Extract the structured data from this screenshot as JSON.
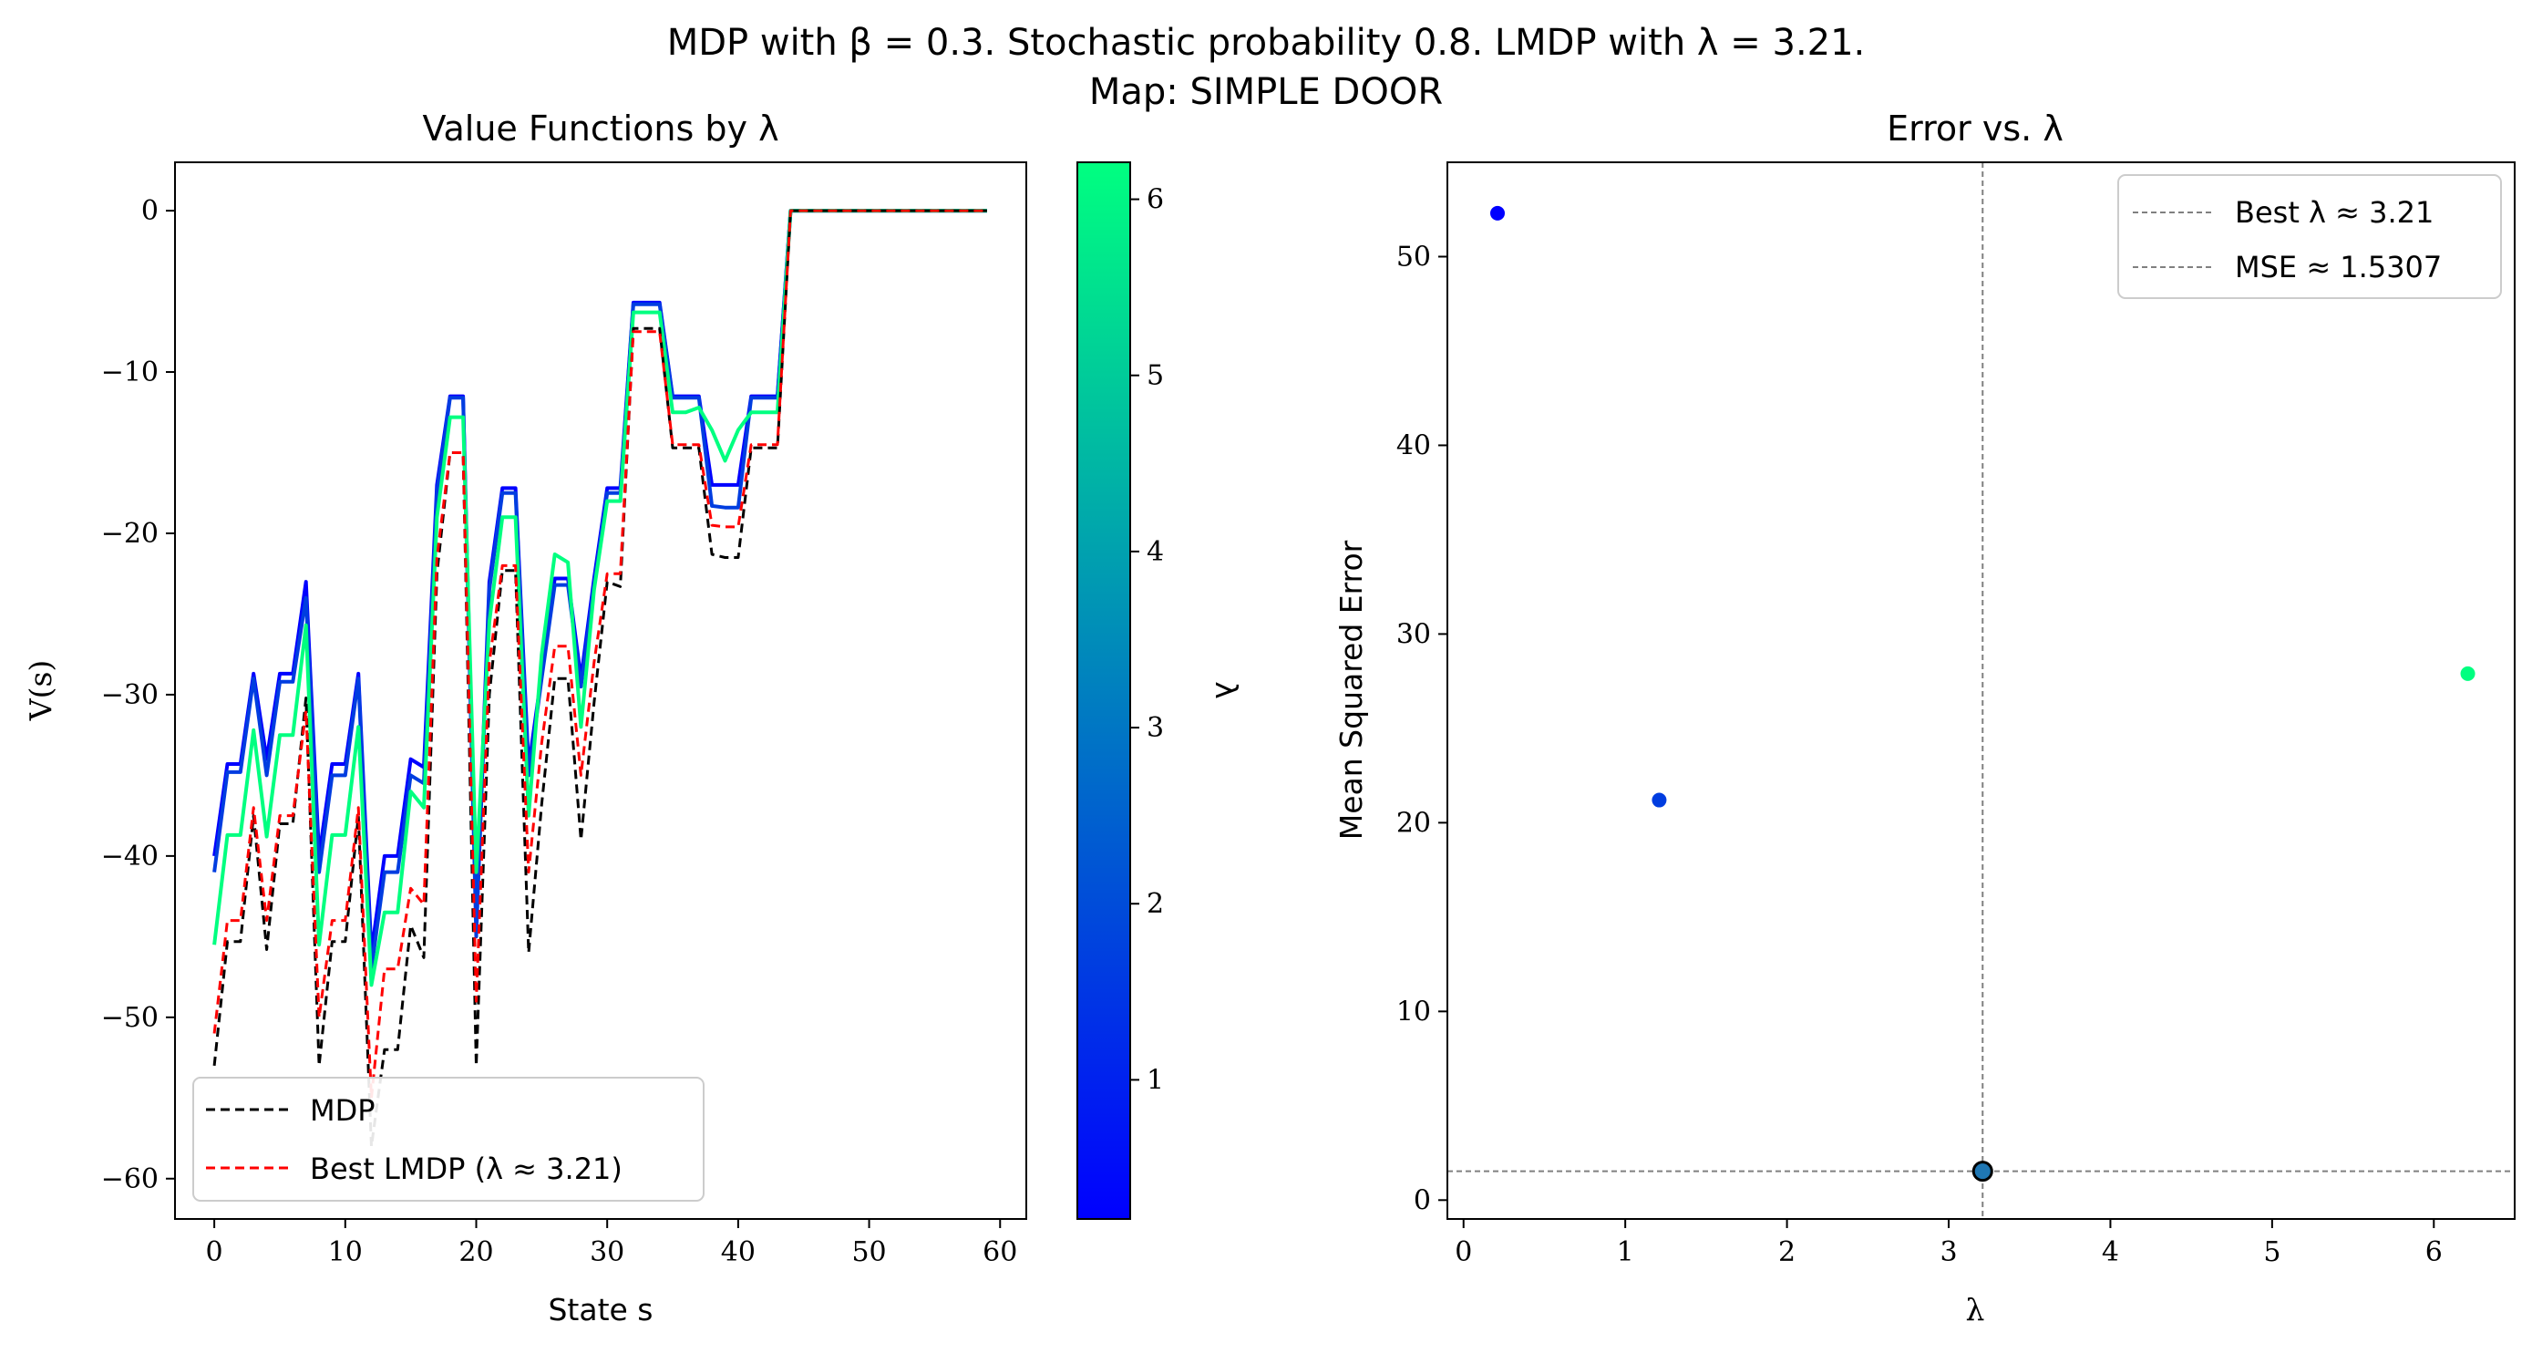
{
  "figure": {
    "suptitle_line1": "MDP with β = 0.3. Stochastic probability 0.8. LMDP with λ = 3.21.",
    "suptitle_line2": "Map: SIMPLE DOOR"
  },
  "colors": {
    "mdp": "#000000",
    "best_lmdp": "#ff0000",
    "colormap_low": "#0000ff",
    "colormap_high": "#00ff80",
    "best_marker": "#1f77b4",
    "refline": "#808080"
  },
  "chart_data": [
    {
      "type": "line",
      "title": "Value Functions by λ",
      "xlabel": "State s",
      "ylabel": "V(s)",
      "xlim": [
        -3,
        62
      ],
      "ylim": [
        -62.5,
        3
      ],
      "xticks": [
        0,
        10,
        20,
        30,
        40,
        50,
        60
      ],
      "yticks": [
        0,
        -10,
        -20,
        -30,
        -40,
        -50,
        -60
      ],
      "grid": false,
      "legend_position": "lower-left",
      "legend": [
        "MDP",
        "Best LMDP (λ ≈ 3.21)"
      ],
      "colorbar": {
        "label": "λ",
        "range": [
          0.21,
          6.21
        ],
        "ticks": [
          1,
          2,
          3,
          4,
          5,
          6
        ]
      },
      "series": [
        {
          "name": "MDP",
          "style": "dashed",
          "color": "#000000",
          "values": [
            -53,
            -45.3,
            -45.3,
            -37.5,
            -45.8,
            -38,
            -38,
            -30.2,
            -53,
            -45.3,
            -45.3,
            -37.5,
            -58,
            -52,
            -52,
            -44.3,
            -46.3,
            -22.5,
            -15,
            -15,
            -53,
            -30,
            -22.3,
            -22.3,
            -46,
            -36.8,
            -29,
            -29,
            -39,
            -30.5,
            -23,
            -23.3,
            -7.3,
            -7.3,
            -7.3,
            -14.7,
            -14.7,
            -14.7,
            -21.3,
            -21.5,
            -21.5,
            -14.7,
            -14.7,
            -14.7,
            0,
            0,
            0,
            0,
            0,
            0,
            0,
            0,
            0,
            0,
            0,
            0,
            0,
            0,
            0,
            0
          ]
        },
        {
          "name": "Best LMDP (λ ≈ 3.21)",
          "style": "dashed",
          "color": "#ff0000",
          "values": [
            -51,
            -44,
            -44,
            -37,
            -44,
            -37.5,
            -37.5,
            -31,
            -50,
            -44,
            -44,
            -37,
            -55,
            -47,
            -47,
            -42,
            -43,
            -21.5,
            -15,
            -15,
            -49,
            -28,
            -22,
            -22,
            -41,
            -33,
            -27,
            -27,
            -35,
            -28,
            -22.5,
            -22.5,
            -7.5,
            -7.5,
            -7.5,
            -14.5,
            -14.5,
            -14.5,
            -19.5,
            -19.6,
            -19.6,
            -14.5,
            -14.5,
            -14.5,
            0,
            0,
            0,
            0,
            0,
            0,
            0,
            0,
            0,
            0,
            0,
            0,
            0,
            0,
            0,
            0
          ]
        },
        {
          "name": "λ = 0.21",
          "lambda": 0.21,
          "color": "#0000ff",
          "values": [
            -40,
            -34.3,
            -34.3,
            -28.7,
            -34,
            -28.7,
            -28.7,
            -23,
            -40,
            -34.3,
            -34.3,
            -28.7,
            -46,
            -40,
            -40,
            -34,
            -34.5,
            -17,
            -11.5,
            -11.5,
            -44,
            -23,
            -17.2,
            -17.2,
            -34.5,
            -28.7,
            -22.8,
            -22.8,
            -29,
            -22.8,
            -17.2,
            -17.2,
            -5.7,
            -5.7,
            -5.7,
            -11.5,
            -11.5,
            -11.5,
            -17,
            -17,
            -17,
            -11.5,
            -11.5,
            -11.5,
            0,
            0,
            0,
            0,
            0,
            0,
            0,
            0,
            0,
            0,
            0,
            0,
            0,
            0,
            0,
            0
          ]
        },
        {
          "name": "λ = 1.21",
          "lambda": 1.21,
          "color": "#003de0",
          "values": [
            -41,
            -34.8,
            -34.8,
            -29,
            -35,
            -29.2,
            -29.2,
            -24,
            -41,
            -35,
            -35,
            -29,
            -47,
            -41,
            -41,
            -35,
            -35.5,
            -17.5,
            -11.6,
            -11.6,
            -45,
            -23.5,
            -17.5,
            -17.5,
            -35,
            -29,
            -23.2,
            -23.2,
            -29.5,
            -23.2,
            -17.5,
            -17.5,
            -5.8,
            -5.8,
            -5.8,
            -11.6,
            -11.6,
            -11.6,
            -18.3,
            -18.4,
            -18.4,
            -11.6,
            -11.6,
            -11.6,
            0,
            0,
            0,
            0,
            0,
            0,
            0,
            0,
            0,
            0,
            0,
            0,
            0,
            0,
            0,
            0
          ]
        },
        {
          "name": "λ = 6.21",
          "lambda": 6.21,
          "color": "#00ff80",
          "values": [
            -45.5,
            -38.7,
            -38.7,
            -32.2,
            -38.8,
            -32.5,
            -32.5,
            -25.7,
            -45.5,
            -38.7,
            -38.7,
            -32,
            -48,
            -43.5,
            -43.5,
            -36,
            -37,
            -19,
            -12.8,
            -12.8,
            -41,
            -25.5,
            -19,
            -19,
            -37.5,
            -27.5,
            -21.3,
            -21.8,
            -32,
            -23.5,
            -18,
            -18,
            -6.3,
            -6.3,
            -6.3,
            -12.5,
            -12.5,
            -12.2,
            -13.6,
            -15.5,
            -13.6,
            -12.5,
            -12.5,
            -12.5,
            0,
            0,
            0,
            0,
            0,
            0,
            0,
            0,
            0,
            0,
            0,
            0,
            0,
            0,
            0,
            0
          ]
        }
      ]
    },
    {
      "type": "scatter",
      "title": "Error vs. λ",
      "xlabel": "λ",
      "ylabel": "Mean Squared Error",
      "xlim": [
        -0.1,
        6.5
      ],
      "ylim": [
        -1,
        55
      ],
      "xticks": [
        0,
        1,
        2,
        3,
        4,
        5,
        6
      ],
      "yticks": [
        0,
        10,
        20,
        30,
        40,
        50
      ],
      "grid": false,
      "legend_position": "upper-right",
      "legend": [
        "Best λ ≈ 3.21",
        "MSE ≈ 1.5307"
      ],
      "points": [
        {
          "x": 0.21,
          "y": 52.3,
          "color": "#0000ff"
        },
        {
          "x": 1.21,
          "y": 21.2,
          "color": "#003de0"
        },
        {
          "x": 6.21,
          "y": 27.9,
          "color": "#00ff80"
        }
      ],
      "best_point": {
        "x": 3.21,
        "y": 1.5307,
        "color": "#1f77b4"
      },
      "vline_x": 3.21,
      "hline_y": 1.5307
    }
  ]
}
